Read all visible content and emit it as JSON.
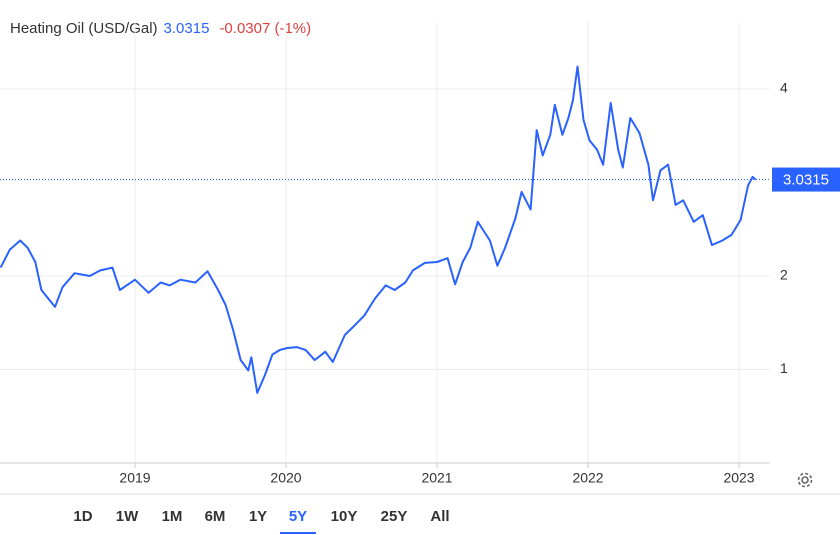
{
  "chart_data": {
    "type": "line",
    "title": "Heating Oil (USD/Gal)",
    "price": 3.0315,
    "change": "-0.0307 (-1%)",
    "color": "#2962ff",
    "grid": true,
    "xlim": [
      2018.106,
      2023.205
    ],
    "ylim": [
      0,
      4.5
    ],
    "xticks": [
      2019,
      2020,
      2021,
      2022,
      2023
    ],
    "yticks": [
      1,
      2,
      4
    ],
    "x": [
      2018.11,
      2018.17,
      2018.24,
      2018.29,
      2018.34,
      2018.38,
      2018.47,
      2018.52,
      2018.6,
      2018.7,
      2018.77,
      2018.85,
      2018.9,
      2019.0,
      2019.09,
      2019.17,
      2019.23,
      2019.3,
      2019.4,
      2019.48,
      2019.55,
      2019.6,
      2019.65,
      2019.7,
      2019.75,
      2019.77,
      2019.81,
      2019.86,
      2019.91,
      2019.96,
      2020.01,
      2020.07,
      2020.13,
      2020.19,
      2020.26,
      2020.31,
      2020.39,
      2020.46,
      2020.52,
      2020.59,
      2020.66,
      2020.72,
      2020.79,
      2020.84,
      2020.92,
      2021.0,
      2021.07,
      2021.12,
      2021.17,
      2021.22,
      2021.27,
      2021.35,
      2021.4,
      2021.45,
      2021.52,
      2021.56,
      2021.62,
      2021.66,
      2021.7,
      2021.75,
      2021.78,
      2021.83,
      2021.87,
      2021.9,
      2021.93,
      2021.97,
      2022.01,
      2022.06,
      2022.1,
      2022.15,
      2022.2,
      2022.23,
      2022.28,
      2022.34,
      2022.4,
      2022.43,
      2022.48,
      2022.53,
      2022.58,
      2022.63,
      2022.7,
      2022.76,
      2022.82,
      2022.89,
      2022.95,
      2023.01,
      2023.06,
      2023.09,
      2023.11
    ],
    "values": [
      2.09,
      2.28,
      2.38,
      2.3,
      2.15,
      1.85,
      1.67,
      1.88,
      2.03,
      2.0,
      2.06,
      2.09,
      1.85,
      1.96,
      1.82,
      1.93,
      1.9,
      1.96,
      1.93,
      2.05,
      1.85,
      1.69,
      1.42,
      1.1,
      0.99,
      1.13,
      0.75,
      0.94,
      1.16,
      1.21,
      1.23,
      1.24,
      1.21,
      1.1,
      1.19,
      1.08,
      1.37,
      1.48,
      1.58,
      1.76,
      1.9,
      1.85,
      1.93,
      2.06,
      2.14,
      2.15,
      2.19,
      1.91,
      2.15,
      2.3,
      2.58,
      2.38,
      2.11,
      2.3,
      2.62,
      2.9,
      2.71,
      3.56,
      3.29,
      3.51,
      3.83,
      3.51,
      3.69,
      3.88,
      4.24,
      3.67,
      3.45,
      3.35,
      3.19,
      3.85,
      3.35,
      3.16,
      3.69,
      3.53,
      3.19,
      2.81,
      3.13,
      3.19,
      2.76,
      2.81,
      2.58,
      2.65,
      2.33,
      2.38,
      2.44,
      2.6,
      2.97,
      3.06,
      3.0315
    ],
    "ranges": [
      "1D",
      "1W",
      "1M",
      "6M",
      "1Y",
      "5Y",
      "10Y",
      "25Y",
      "All"
    ],
    "selected_range": "5Y"
  }
}
